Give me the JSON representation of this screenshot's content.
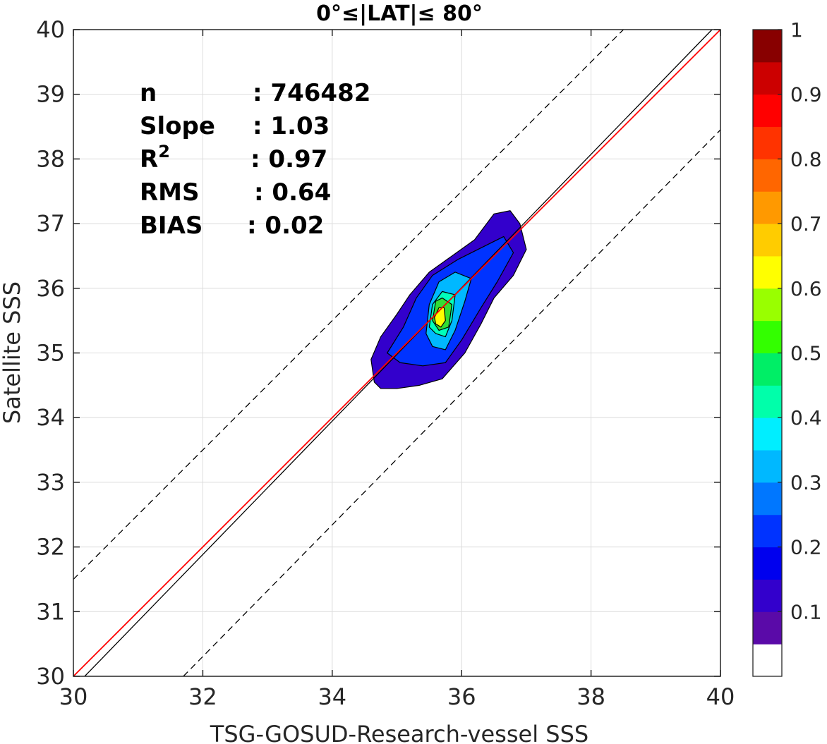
{
  "chart_data": {
    "type": "heatmap",
    "title": "0°≤|LAT|≤ 80°",
    "xlabel": "TSG-GOSUD-Research-vessel SSS",
    "ylabel": "Satellite SSS",
    "xlim": [
      30,
      40
    ],
    "ylim": [
      30,
      40
    ],
    "x_ticks": [
      "30",
      "32",
      "34",
      "36",
      "38",
      "40"
    ],
    "y_ticks": [
      "30",
      "31",
      "32",
      "33",
      "34",
      "35",
      "36",
      "37",
      "38",
      "39",
      "40"
    ],
    "grid": true,
    "stats": [
      {
        "label": "n",
        "value": ": 746482"
      },
      {
        "label": "Slope",
        "value": ": 1.03"
      },
      {
        "label": "R",
        "sup": "2",
        "value": ": 0.97"
      },
      {
        "label": "RMS",
        "value": ": 0.64"
      },
      {
        "label": "BIAS",
        "value": ": 0.02"
      }
    ],
    "lines": [
      {
        "kind": "identity",
        "color": "#000000",
        "style": "solid",
        "points": [
          [
            30,
            30
          ],
          [
            40,
            40
          ]
        ]
      },
      {
        "kind": "regression",
        "color": "#ff0000",
        "style": "solid",
        "points": [
          [
            30,
            30
          ],
          [
            40,
            40
          ]
        ]
      },
      {
        "kind": "upper-bound",
        "color": "#000000",
        "style": "dashed",
        "points": [
          [
            30,
            31.5
          ],
          [
            38.5,
            40
          ]
        ]
      },
      {
        "kind": "lower-bound",
        "color": "#000000",
        "style": "dashed",
        "points": [
          [
            31.7,
            30
          ],
          [
            40,
            38.45
          ]
        ]
      }
    ],
    "density_contours": [
      {
        "level": 0.05,
        "color": "#3300cc",
        "points": [
          [
            34.65,
            34.55
          ],
          [
            34.6,
            34.9
          ],
          [
            34.75,
            35.25
          ],
          [
            35.0,
            35.6
          ],
          [
            35.2,
            35.9
          ],
          [
            35.5,
            36.25
          ],
          [
            35.85,
            36.5
          ],
          [
            36.2,
            36.75
          ],
          [
            36.5,
            37.15
          ],
          [
            36.75,
            37.2
          ],
          [
            36.9,
            37.0
          ],
          [
            37.0,
            36.6
          ],
          [
            36.8,
            36.2
          ],
          [
            36.5,
            35.85
          ],
          [
            36.3,
            35.45
          ],
          [
            36.05,
            35.0
          ],
          [
            35.7,
            34.6
          ],
          [
            35.35,
            34.5
          ],
          [
            35.0,
            34.45
          ],
          [
            34.75,
            34.45
          ]
        ]
      },
      {
        "level": 0.15,
        "color": "#0033ff",
        "points": [
          [
            34.85,
            35.0
          ],
          [
            35.1,
            35.4
          ],
          [
            35.3,
            35.85
          ],
          [
            35.55,
            36.2
          ],
          [
            35.95,
            36.45
          ],
          [
            36.35,
            36.65
          ],
          [
            36.65,
            36.8
          ],
          [
            36.8,
            36.55
          ],
          [
            36.55,
            36.1
          ],
          [
            36.3,
            35.7
          ],
          [
            36.0,
            35.2
          ],
          [
            35.75,
            34.85
          ],
          [
            35.4,
            34.8
          ],
          [
            35.05,
            34.85
          ]
        ]
      },
      {
        "level": 0.25,
        "color": "#00b8ff",
        "points": [
          [
            35.45,
            35.3
          ],
          [
            35.5,
            35.75
          ],
          [
            35.65,
            36.1
          ],
          [
            35.9,
            36.25
          ],
          [
            36.15,
            36.15
          ],
          [
            36.05,
            35.8
          ],
          [
            35.9,
            35.35
          ],
          [
            35.75,
            35.05
          ],
          [
            35.55,
            35.1
          ]
        ]
      },
      {
        "level": 0.35,
        "color": "#00ffbb",
        "points": [
          [
            35.5,
            35.4
          ],
          [
            35.55,
            35.75
          ],
          [
            35.7,
            35.95
          ],
          [
            35.9,
            35.9
          ],
          [
            35.85,
            35.5
          ],
          [
            35.75,
            35.25
          ],
          [
            35.6,
            35.3
          ]
        ]
      },
      {
        "level": 0.45,
        "color": "#33dd33",
        "points": [
          [
            35.55,
            35.5
          ],
          [
            35.6,
            35.8
          ],
          [
            35.7,
            35.85
          ],
          [
            35.85,
            35.75
          ],
          [
            35.8,
            35.4
          ],
          [
            35.65,
            35.35
          ]
        ]
      },
      {
        "level": 0.55,
        "color": "#ffff00",
        "points": [
          [
            35.58,
            35.55
          ],
          [
            35.65,
            35.7
          ],
          [
            35.73,
            35.7
          ],
          [
            35.75,
            35.5
          ],
          [
            35.68,
            35.4
          ],
          [
            35.6,
            35.45
          ]
        ]
      }
    ],
    "colorbar": {
      "range": [
        0,
        1
      ],
      "tick_labels": [
        "0.1",
        "0.2",
        "0.3",
        "0.4",
        "0.5",
        "0.6",
        "0.7",
        "0.8",
        "0.9",
        "1"
      ],
      "colors": [
        "#ffffff",
        "#5a0aa8",
        "#3300cc",
        "#0000ee",
        "#0033ff",
        "#0077ff",
        "#00b8ff",
        "#00eeff",
        "#00ffaa",
        "#00ee66",
        "#33ff00",
        "#99ff00",
        "#ffff00",
        "#ffcc00",
        "#ff9900",
        "#ff6600",
        "#ff3300",
        "#ff0000",
        "#cc0000",
        "#880000"
      ]
    }
  }
}
